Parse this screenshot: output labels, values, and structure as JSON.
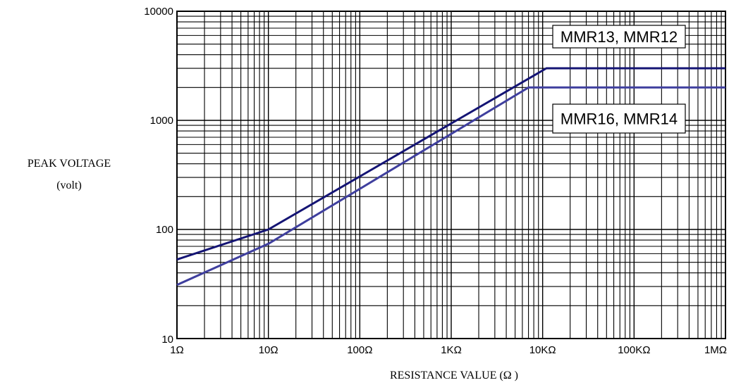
{
  "chart_data": {
    "type": "line",
    "title": "",
    "xlabel": "RESISTANCE VALUE (Ω )",
    "ylabel": "PEAK VOLTAGE",
    "ylabel_unit": "(volt)",
    "x_scale": "log",
    "y_scale": "log",
    "xlim": [
      1,
      1000000
    ],
    "ylim": [
      10,
      10000
    ],
    "grid": true,
    "x_ticks": [
      {
        "value": 1,
        "label": "1Ω"
      },
      {
        "value": 10,
        "label": "10Ω"
      },
      {
        "value": 100,
        "label": "100Ω"
      },
      {
        "value": 1000,
        "label": "1KΩ"
      },
      {
        "value": 10000,
        "label": "10KΩ"
      },
      {
        "value": 100000,
        "label": "100KΩ"
      },
      {
        "value": 1000000,
        "label": "1MΩ"
      }
    ],
    "y_ticks": [
      {
        "value": 10,
        "label": "10"
      },
      {
        "value": 100,
        "label": "100"
      },
      {
        "value": 1000,
        "label": "1000"
      },
      {
        "value": 10000,
        "label": "10000"
      }
    ],
    "series": [
      {
        "name": "MMR13, MMR12",
        "color": "#141474",
        "x": [
          1,
          10,
          11000,
          1000000
        ],
        "y": [
          53,
          100,
          3000,
          3000
        ]
      },
      {
        "name": "MMR16, MMR14",
        "color": "#3f3f9e",
        "x": [
          1,
          10,
          7000,
          1000000
        ],
        "y": [
          31,
          74,
          2000,
          2000
        ]
      }
    ]
  }
}
